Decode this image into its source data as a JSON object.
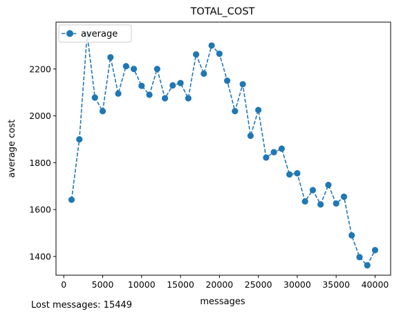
{
  "chart_data": {
    "type": "line",
    "title": "TOTAL_COST",
    "xlabel": "messages",
    "ylabel": "average cost",
    "xlim": [
      -1000,
      42000
    ],
    "ylim": [
      1320,
      2400
    ],
    "xticks": [
      0,
      5000,
      10000,
      15000,
      20000,
      25000,
      30000,
      35000,
      40000
    ],
    "yticks": [
      1400,
      1600,
      1800,
      2000,
      2200
    ],
    "grid": false,
    "legend": {
      "placement": "upper-left",
      "entries": [
        "average"
      ]
    },
    "series": [
      {
        "name": "average",
        "color": "#1f77b4",
        "line_style": "dashed",
        "marker": "circle",
        "x": [
          1000,
          2000,
          3000,
          4000,
          5000,
          6000,
          7000,
          8000,
          9000,
          10000,
          11000,
          12000,
          13000,
          14000,
          15000,
          16000,
          17000,
          18000,
          19000,
          20000,
          21000,
          22000,
          23000,
          24000,
          25000,
          26000,
          27000,
          28000,
          29000,
          30000,
          31000,
          32000,
          33000,
          34000,
          35000,
          36000,
          37000,
          38000,
          39000,
          40000
        ],
        "y": [
          1642,
          1900,
          2348,
          2078,
          2020,
          2250,
          2095,
          2212,
          2200,
          2128,
          2090,
          2200,
          2075,
          2130,
          2140,
          2075,
          2262,
          2180,
          2300,
          2265,
          2150,
          2020,
          2135,
          1915,
          2025,
          1822,
          1845,
          1860,
          1750,
          1755,
          1635,
          1683,
          1622,
          1705,
          1626,
          1655,
          1490,
          1397,
          1362,
          1427
        ]
      }
    ]
  },
  "footnote": "Lost messages: 15449"
}
